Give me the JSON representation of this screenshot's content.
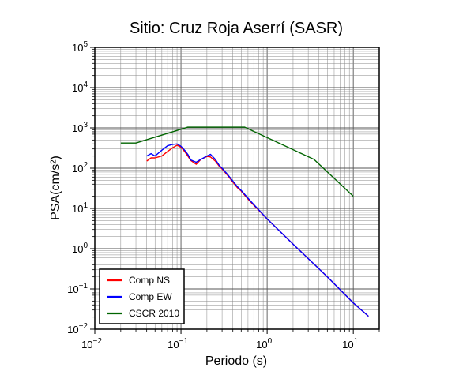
{
  "chart_data": {
    "type": "line",
    "title": "Sitio: Cruz Roja Aserrí (SASR)",
    "xlabel": "Periodo (s)",
    "ylabel": "PSA(cm/s²)",
    "x_scale": "log",
    "y_scale": "log",
    "xlim": [
      0.01,
      20
    ],
    "ylim": [
      0.01,
      100000
    ],
    "grid": true,
    "legend_position": "bottom-left",
    "x_ticks": [
      {
        "base": "10",
        "exp": "−2"
      },
      {
        "base": "10",
        "exp": "−1"
      },
      {
        "base": "10",
        "exp": "0"
      },
      {
        "base": "10",
        "exp": "1"
      }
    ],
    "y_ticks": [
      {
        "base": "10",
        "exp": "−2"
      },
      {
        "base": "10",
        "exp": "−1"
      },
      {
        "base": "10",
        "exp": "0"
      },
      {
        "base": "10",
        "exp": "1"
      },
      {
        "base": "10",
        "exp": "2"
      },
      {
        "base": "10",
        "exp": "3"
      },
      {
        "base": "10",
        "exp": "4"
      },
      {
        "base": "10",
        "exp": "5"
      }
    ],
    "series": [
      {
        "name": "Comp NS",
        "color": "#ff0000",
        "x": [
          0.04,
          0.045,
          0.05,
          0.06,
          0.07,
          0.08,
          0.09,
          0.1,
          0.11,
          0.12,
          0.13,
          0.15,
          0.17,
          0.2,
          0.22,
          0.25,
          0.28,
          0.3,
          0.35,
          0.4,
          0.45,
          0.5,
          0.6,
          0.7,
          1.0,
          2.0,
          5.0,
          10.0,
          15.0
        ],
        "y": [
          150,
          180,
          180,
          200,
          260,
          320,
          370,
          330,
          260,
          200,
          155,
          125,
          165,
          195,
          190,
          150,
          110,
          95,
          65,
          45,
          33,
          27,
          17,
          12,
          5.5,
          1.3,
          0.2,
          0.045,
          0.021
        ]
      },
      {
        "name": "Comp EW",
        "color": "#0000ff",
        "x": [
          0.04,
          0.045,
          0.05,
          0.06,
          0.07,
          0.08,
          0.09,
          0.1,
          0.11,
          0.12,
          0.13,
          0.15,
          0.17,
          0.2,
          0.22,
          0.25,
          0.28,
          0.3,
          0.35,
          0.4,
          0.45,
          0.5,
          0.6,
          0.7,
          1.0,
          2.0,
          5.0,
          10.0,
          15.0
        ],
        "y": [
          200,
          230,
          200,
          280,
          360,
          390,
          400,
          350,
          280,
          220,
          160,
          140,
          165,
          200,
          220,
          165,
          115,
          100,
          68,
          48,
          35,
          28,
          18,
          12.5,
          5.5,
          1.3,
          0.2,
          0.045,
          0.021
        ]
      },
      {
        "name": "CSCR 2010",
        "color": "#006400",
        "x": [
          0.02,
          0.03,
          0.12,
          0.55,
          3.5,
          10.0
        ],
        "y": [
          420,
          420,
          1040,
          1040,
          165,
          20
        ]
      }
    ]
  }
}
